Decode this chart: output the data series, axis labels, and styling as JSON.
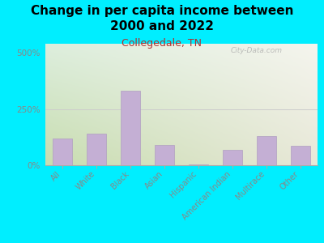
{
  "title": "Change in per capita income between\n2000 and 2022",
  "subtitle": "Collegedale, TN",
  "categories": [
    "All",
    "White",
    "Black",
    "Asian",
    "Hispanic",
    "American Indian",
    "Multirace",
    "Other"
  ],
  "values": [
    120,
    140,
    330,
    90,
    2,
    70,
    130,
    85
  ],
  "bar_color": "#c4afd4",
  "bar_edge_color": "#b09fc0",
  "title_fontsize": 11,
  "subtitle_fontsize": 9,
  "subtitle_color": "#b03030",
  "background_outer": "#00eeff",
  "grad_top_left": "#ddeedd",
  "grad_top_right": "#f5f5ee",
  "grad_bottom_left": "#c8ddb0",
  "grad_bottom_right": "#e8e8d8",
  "ylabel_ticks": [
    0,
    250,
    500
  ],
  "ylabel_labels": [
    "0%",
    "250%",
    "500%"
  ],
  "ylim": [
    0,
    540
  ],
  "watermark": "City-Data.com",
  "tick_color": "#888888",
  "spine_color": "#aaaaaa"
}
